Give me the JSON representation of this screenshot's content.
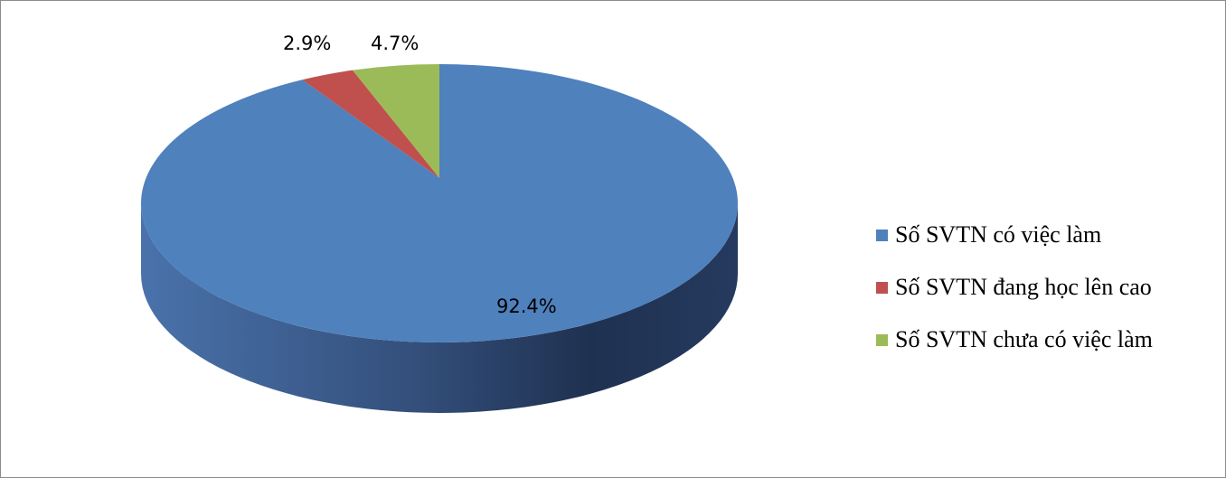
{
  "chart_data": {
    "type": "pie",
    "style": "3d",
    "categories": [
      "Số SVTN có việc làm",
      "Số SVTN đang học lên cao",
      "Số SVTN chưa có việc làm"
    ],
    "values": [
      92.4,
      2.9,
      4.7
    ],
    "data_labels": [
      "92.4%",
      "2.9%",
      "4.7%"
    ],
    "colors": [
      "#4f81bd",
      "#c0504d",
      "#9bbb59"
    ],
    "legend_position": "right"
  }
}
